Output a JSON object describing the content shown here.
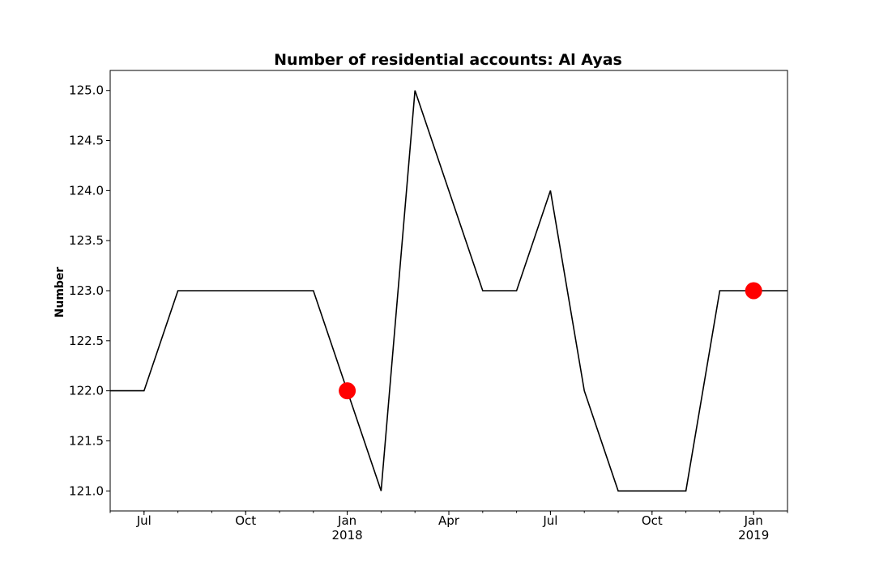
{
  "chart_data": {
    "type": "line",
    "title": "Number of residential accounts: Al Ayas",
    "xlabel": "",
    "ylabel": "Number",
    "x_axis_type": "date",
    "xlim": [
      "2017-06-01",
      "2019-02-01"
    ],
    "ylim": [
      120.8,
      125.2
    ],
    "grid": false,
    "legend": "none",
    "line_color": "#000000",
    "marker_color": "#ff0000",
    "x": [
      "2017-06-01",
      "2017-07-01",
      "2017-08-01",
      "2017-09-01",
      "2017-10-01",
      "2017-11-01",
      "2017-12-01",
      "2018-01-01",
      "2018-02-01",
      "2018-03-01",
      "2018-04-01",
      "2018-05-01",
      "2018-06-01",
      "2018-07-01",
      "2018-08-01",
      "2018-09-01",
      "2018-10-01",
      "2018-11-01",
      "2018-12-01",
      "2019-01-01",
      "2019-02-01"
    ],
    "series": [
      {
        "values": [
          122,
          122,
          123,
          123,
          123,
          123,
          123,
          122,
          121,
          125,
          124,
          123,
          123,
          124,
          122,
          121,
          121,
          121,
          123,
          123,
          123
        ]
      }
    ],
    "highlighted_points": [
      {
        "x": "2018-01-01",
        "y": 122
      },
      {
        "x": "2019-01-01",
        "y": 123
      }
    ],
    "y_ticks": [
      "121.0",
      "121.5",
      "122.0",
      "122.5",
      "123.0",
      "123.5",
      "124.0",
      "124.5",
      "125.0"
    ],
    "x_ticks": [
      {
        "date": "2017-07-01",
        "label": "Jul",
        "sublabel": ""
      },
      {
        "date": "2017-10-01",
        "label": "Oct",
        "sublabel": ""
      },
      {
        "date": "2018-01-01",
        "label": "Jan",
        "sublabel": "2018"
      },
      {
        "date": "2018-04-01",
        "label": "Apr",
        "sublabel": ""
      },
      {
        "date": "2018-07-01",
        "label": "Jul",
        "sublabel": ""
      },
      {
        "date": "2018-10-01",
        "label": "Oct",
        "sublabel": ""
      },
      {
        "date": "2019-01-01",
        "label": "Jan",
        "sublabel": "2019"
      }
    ]
  }
}
